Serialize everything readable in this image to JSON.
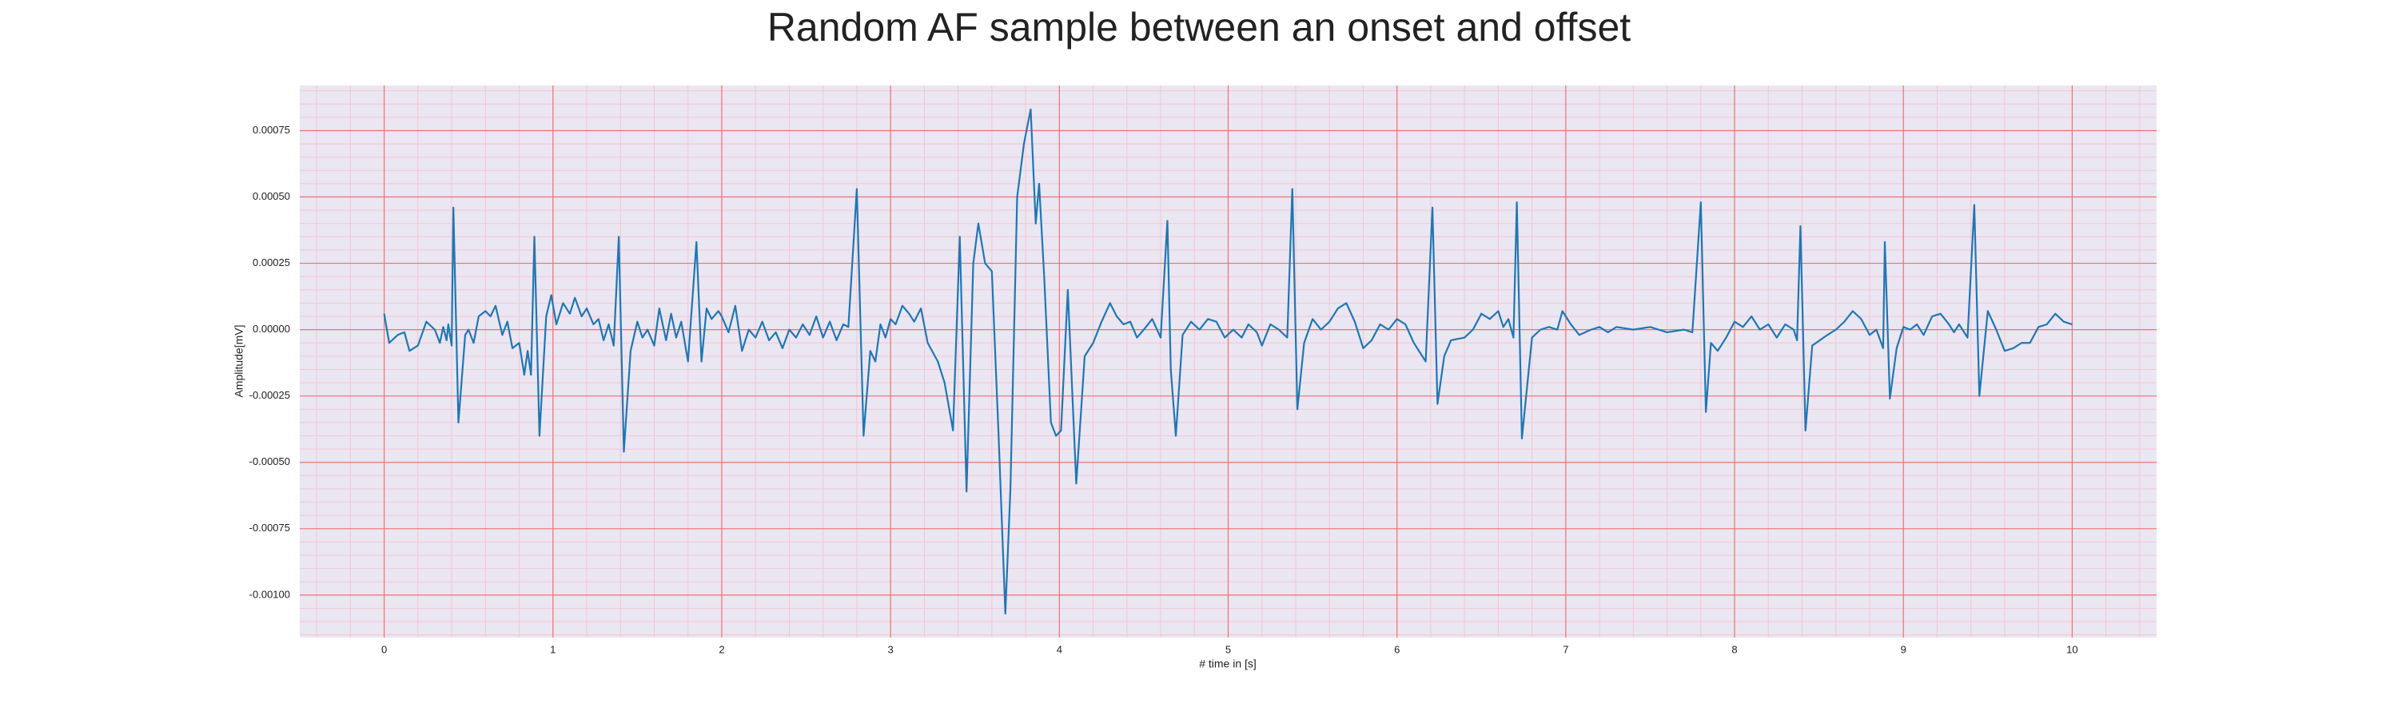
{
  "chart_data": {
    "type": "line",
    "title": "Random AF sample between an onset and offset",
    "xlabel": "# time in [s]",
    "ylabel": "Amplitude[mV]",
    "color": "#1f77b4",
    "grid": true,
    "grid_color": "#f07070",
    "minor_grid_color": "#f3c6d3",
    "background": "#eae6f2",
    "xlim": [
      -0.5,
      10.5
    ],
    "ylim": [
      -0.00116,
      0.00092
    ],
    "xticks": [
      0,
      1,
      2,
      3,
      4,
      5,
      6,
      7,
      8,
      9,
      10
    ],
    "yticks": [
      {
        "value": -0.001,
        "label": "-0.00100"
      },
      {
        "value": -0.00075,
        "label": "-0.00075"
      },
      {
        "value": -0.0005,
        "label": "-0.00050"
      },
      {
        "value": -0.00025,
        "label": "-0.00025"
      },
      {
        "value": 0,
        "label": "0.00000"
      },
      {
        "value": 0.00025,
        "label": "0.00025"
      },
      {
        "value": 0.0005,
        "label": "0.00050"
      },
      {
        "value": 0.00075,
        "label": "0.00075"
      }
    ],
    "xminorticks": [
      -0.4,
      -0.2,
      0.2,
      0.4,
      0.6,
      0.8,
      1.2,
      1.4,
      1.6,
      1.8,
      2.2,
      2.4,
      2.6,
      2.8,
      3.2,
      3.4,
      3.6,
      3.8,
      4.2,
      4.4,
      4.6,
      4.8,
      5.2,
      5.4,
      5.6,
      5.8,
      6.2,
      6.4,
      6.6,
      6.8,
      7.2,
      7.4,
      7.6,
      7.8,
      8.2,
      8.4,
      8.6,
      8.8,
      9.2,
      9.4,
      9.6,
      9.8,
      10.2,
      10.4
    ],
    "yminorticks": [
      -0.00115,
      -0.0011,
      -0.00105,
      -0.00095,
      -0.0009,
      -0.00085,
      -0.0008,
      -0.0007,
      -0.00065,
      -0.0006,
      -0.00055,
      -0.00045,
      -0.0004,
      -0.00035,
      -0.0003,
      -0.0002,
      -0.00015,
      -0.0001,
      -5e-05,
      5e-05,
      0.0001,
      0.00015,
      0.0002,
      0.0003,
      0.00035,
      0.0004,
      0.00045,
      0.00055,
      0.0006,
      0.00065,
      0.0007,
      0.0008,
      0.00085,
      0.0009
    ],
    "x": [
      0,
      0.03,
      0.08,
      0.12,
      0.15,
      0.2,
      0.25,
      0.3,
      0.33,
      0.35,
      0.37,
      0.38,
      0.4,
      0.41,
      0.44,
      0.48,
      0.5,
      0.53,
      0.56,
      0.6,
      0.63,
      0.66,
      0.7,
      0.73,
      0.76,
      0.8,
      0.83,
      0.85,
      0.87,
      0.89,
      0.92,
      0.96,
      0.99,
      1.02,
      1.06,
      1.1,
      1.13,
      1.17,
      1.2,
      1.24,
      1.27,
      1.3,
      1.33,
      1.36,
      1.39,
      1.42,
      1.46,
      1.5,
      1.53,
      1.56,
      1.6,
      1.63,
      1.67,
      1.7,
      1.73,
      1.76,
      1.8,
      1.85,
      1.88,
      1.91,
      1.94,
      1.98,
      2,
      2.04,
      2.08,
      2.12,
      2.16,
      2.2,
      2.24,
      2.28,
      2.32,
      2.36,
      2.4,
      2.44,
      2.48,
      2.52,
      2.56,
      2.6,
      2.64,
      2.68,
      2.72,
      2.75,
      2.8,
      2.84,
      2.88,
      2.91,
      2.94,
      2.97,
      3,
      3.03,
      3.07,
      3.11,
      3.14,
      3.18,
      3.22,
      3.28,
      3.32,
      3.37,
      3.41,
      3.45,
      3.49,
      3.52,
      3.56,
      3.6,
      3.64,
      3.68,
      3.71,
      3.75,
      3.79,
      3.83,
      3.86,
      3.88,
      3.91,
      3.95,
      3.98,
      4.01,
      4.05,
      4.1,
      4.15,
      4.2,
      4.25,
      4.3,
      4.34,
      4.38,
      4.42,
      4.46,
      4.5,
      4.55,
      4.6,
      4.64,
      4.66,
      4.69,
      4.73,
      4.78,
      4.83,
      4.88,
      4.93,
      4.98,
      5.03,
      5.08,
      5.12,
      5.17,
      5.2,
      5.25,
      5.3,
      5.35,
      5.38,
      5.41,
      5.45,
      5.5,
      5.55,
      5.6,
      5.65,
      5.7,
      5.75,
      5.8,
      5.85,
      5.9,
      5.95,
      6,
      6.05,
      6.1,
      6.17,
      6.21,
      6.24,
      6.28,
      6.32,
      6.4,
      6.45,
      6.5,
      6.55,
      6.6,
      6.63,
      6.66,
      6.69,
      6.71,
      6.74,
      6.8,
      6.85,
      6.9,
      6.95,
      6.98,
      7.03,
      7.08,
      7.15,
      7.2,
      7.25,
      7.3,
      7.4,
      7.5,
      7.6,
      7.7,
      7.75,
      7.8,
      7.83,
      7.86,
      7.9,
      7.95,
      8,
      8.05,
      8.1,
      8.15,
      8.2,
      8.25,
      8.3,
      8.35,
      8.37,
      8.39,
      8.42,
      8.46,
      8.55,
      8.6,
      8.65,
      8.7,
      8.75,
      8.8,
      8.84,
      8.88,
      8.89,
      8.92,
      8.96,
      9,
      9.04,
      9.08,
      9.12,
      9.17,
      9.22,
      9.27,
      9.3,
      9.33,
      9.38,
      9.42,
      9.45,
      9.5,
      9.55,
      9.6,
      9.65,
      9.7,
      9.75,
      9.8,
      9.85,
      9.9,
      9.95,
      10
    ],
    "values": [
      6e-05,
      -5e-05,
      -2e-05,
      -1e-05,
      -8e-05,
      -6e-05,
      3e-05,
      0,
      -5e-05,
      1e-05,
      -4e-05,
      2e-05,
      -6e-05,
      0.00046,
      -0.00035,
      -2e-05,
      0,
      -5e-05,
      5e-05,
      7e-05,
      5e-05,
      9e-05,
      -2e-05,
      3e-05,
      -7e-05,
      -5e-05,
      -0.00017,
      -8e-05,
      -0.00017,
      0.00035,
      -0.0004,
      5e-05,
      0.00013,
      2e-05,
      0.0001,
      6e-05,
      0.00012,
      5e-05,
      8e-05,
      2e-05,
      4e-05,
      -4e-05,
      2e-05,
      -6e-05,
      0.00035,
      -0.00046,
      -8e-05,
      3e-05,
      -3e-05,
      0,
      -6e-05,
      8e-05,
      -4e-05,
      6e-05,
      -3e-05,
      3e-05,
      -0.00012,
      0.00033,
      -0.00012,
      8e-05,
      4e-05,
      7e-05,
      5e-05,
      -1e-05,
      9e-05,
      -8e-05,
      0,
      -3e-05,
      3e-05,
      -4e-05,
      -1e-05,
      -7e-05,
      0,
      -3e-05,
      2e-05,
      -2e-05,
      5e-05,
      -3e-05,
      3e-05,
      -4e-05,
      2e-05,
      1e-05,
      0.00053,
      -0.0004,
      -8e-05,
      -0.00012,
      2e-05,
      -3e-05,
      4e-05,
      2e-05,
      9e-05,
      6e-05,
      3e-05,
      8e-05,
      -5e-05,
      -0.00012,
      -0.0002,
      -0.00038,
      0.00035,
      -0.00061,
      0.00025,
      0.0004,
      0.00025,
      0.00022,
      -0.0004,
      -0.00107,
      -0.0006,
      0.0005,
      0.0007,
      0.00083,
      0.0004,
      0.00055,
      0.0002,
      -0.00035,
      -0.0004,
      -0.00038,
      0.00015,
      -0.00058,
      -0.0001,
      -5e-05,
      3e-05,
      0.0001,
      5e-05,
      2e-05,
      3e-05,
      -3e-05,
      0,
      4e-05,
      -3e-05,
      0.00041,
      -0.00015,
      -0.0004,
      -2e-05,
      3e-05,
      0,
      4e-05,
      3e-05,
      -3e-05,
      0,
      -3e-05,
      2e-05,
      -1e-05,
      -6e-05,
      2e-05,
      0,
      -3e-05,
      0.00053,
      -0.0003,
      -5e-05,
      4e-05,
      0,
      3e-05,
      8e-05,
      0.0001,
      3e-05,
      -7e-05,
      -4e-05,
      2e-05,
      0,
      4e-05,
      2e-05,
      -5e-05,
      -0.00012,
      0.00046,
      -0.00028,
      -0.0001,
      -4e-05,
      -3e-05,
      0,
      6e-05,
      4e-05,
      7e-05,
      1e-05,
      4e-05,
      -3e-05,
      0.00048,
      -0.00041,
      -3e-05,
      0,
      1e-05,
      0,
      7e-05,
      2e-05,
      -2e-05,
      0,
      1e-05,
      -1e-05,
      1e-05,
      0,
      1e-05,
      -1e-05,
      0,
      -1e-05,
      0.00048,
      -0.00031,
      -5e-05,
      -8e-05,
      -3e-05,
      3e-05,
      1e-05,
      5e-05,
      0,
      2e-05,
      -3e-05,
      2e-05,
      0,
      -4e-05,
      0.00039,
      -0.00038,
      -6e-05,
      -2e-05,
      0,
      3e-05,
      7e-05,
      4e-05,
      -2e-05,
      0,
      -7e-05,
      0.00033,
      -0.00026,
      -7e-05,
      1e-05,
      0,
      2e-05,
      -2e-05,
      5e-05,
      6e-05,
      2e-05,
      -1e-05,
      2e-05,
      -3e-05,
      0.00047,
      -0.00025,
      7e-05,
      0,
      -8e-05,
      -7e-05,
      -5e-05,
      -5e-05,
      1e-05,
      2e-05,
      6e-05,
      3e-05,
      2e-05
    ]
  }
}
